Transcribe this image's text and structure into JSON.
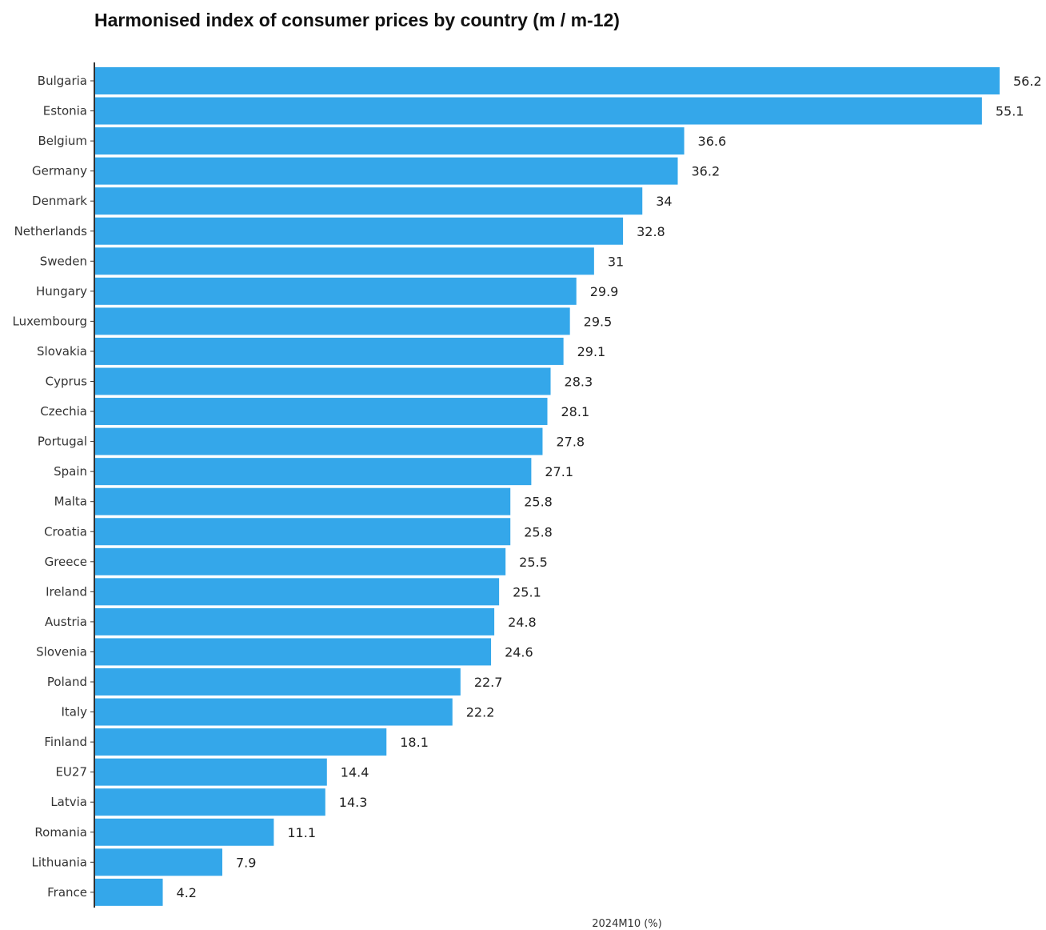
{
  "chart_data": {
    "type": "bar",
    "orientation": "horizontal",
    "title": "Harmonised index of consumer prices by country (m / m-12)",
    "xlabel": "2024M10 (%)",
    "ylabel": "",
    "xlim": [
      0,
      56.2
    ],
    "grid": false,
    "legend": "none",
    "bar_color": "#34a7ea",
    "categories": [
      "Bulgaria",
      "Estonia",
      "Belgium",
      "Germany",
      "Denmark",
      "Netherlands",
      "Sweden",
      "Hungary",
      "Luxembourg",
      "Slovakia",
      "Cyprus",
      "Czechia",
      "Portugal",
      "Spain",
      "Malta",
      "Croatia",
      "Greece",
      "Ireland",
      "Austria",
      "Slovenia",
      "Poland",
      "Italy",
      "Finland",
      "EU27",
      "Latvia",
      "Romania",
      "Lithuania",
      "France"
    ],
    "values": [
      56.2,
      55.1,
      36.6,
      36.2,
      34,
      32.8,
      31,
      29.9,
      29.5,
      29.1,
      28.3,
      28.1,
      27.8,
      27.1,
      25.8,
      25.8,
      25.5,
      25.1,
      24.8,
      24.6,
      22.7,
      22.2,
      18.1,
      14.4,
      14.3,
      11.1,
      7.9,
      4.2
    ],
    "value_labels": [
      "56.2",
      "55.1",
      "36.6",
      "36.2",
      "34",
      "32.8",
      "31",
      "29.9",
      "29.5",
      "29.1",
      "28.3",
      "28.1",
      "27.8",
      "27.1",
      "25.8",
      "25.8",
      "25.5",
      "25.1",
      "24.8",
      "24.6",
      "22.7",
      "22.2",
      "18.1",
      "14.4",
      "14.3",
      "11.1",
      "7.9",
      "4.2"
    ]
  }
}
